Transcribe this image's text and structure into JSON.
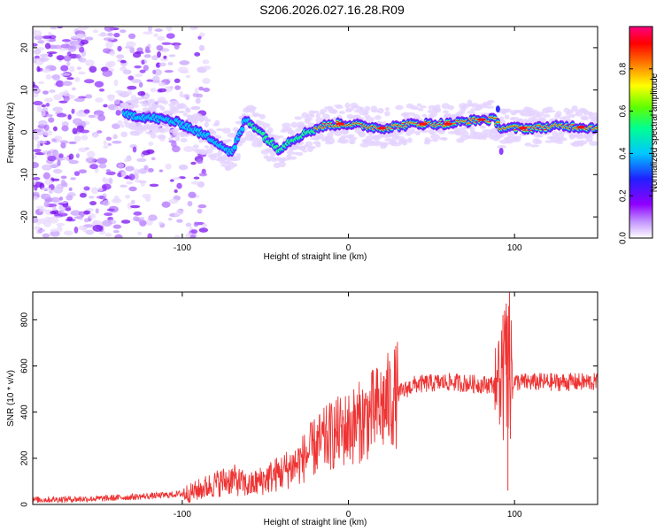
{
  "title": "S206.2026.027.16.28.R09",
  "chart_data": [
    {
      "type": "heatmap",
      "xlabel": "Height of straight line (km)",
      "ylabel": "Frequency (Hz)",
      "xlim": [
        -190,
        150
      ],
      "ylim": [
        -25,
        25
      ],
      "xticks": [
        -100,
        0,
        100
      ],
      "yticks": [
        -20,
        -10,
        0,
        10,
        20
      ],
      "colorbar": {
        "label": "Normalized spectral amplitude",
        "range": [
          0.0,
          1.0
        ],
        "ticks": [
          "0.0",
          "0.2",
          "0.4",
          "0.6",
          "0.8"
        ],
        "tick_values": [
          0.0,
          0.2,
          0.4,
          0.6,
          0.8
        ],
        "colors": [
          "#ffffff",
          "#a000ff",
          "#3030ff",
          "#00c8ff",
          "#00ff80",
          "#60ff00",
          "#ffff00",
          "#ff8000",
          "#ff0000",
          "#ff0080"
        ]
      },
      "ridge": {
        "x": [
          -130,
          -110,
          -100,
          -90,
          -80,
          -70,
          -62,
          -55,
          -48,
          -42,
          -35,
          -25,
          -15,
          -5,
          0,
          10,
          20,
          40,
          60,
          80,
          88,
          92,
          98,
          110,
          130,
          150
        ],
        "y": [
          4,
          3,
          2,
          0,
          -2,
          -5,
          3,
          1,
          -2,
          -4,
          -2,
          0,
          1.5,
          2,
          2,
          1.5,
          1,
          2,
          2,
          3,
          3,
          1,
          1,
          1,
          1.5,
          1
        ]
      },
      "noise_region_x": [
        -190,
        -100
      ]
    },
    {
      "type": "line",
      "xlabel": "Height of straight line (km)",
      "ylabel": "SNR (10 * v/v)",
      "xlim": [
        -190,
        150
      ],
      "ylim": [
        0,
        920
      ],
      "xticks": [
        -100,
        0,
        100
      ],
      "yticks": [
        0,
        200,
        400,
        600,
        800
      ],
      "series": [
        {
          "name": "SNR",
          "color": "#ee3333",
          "x": [
            -190,
            -150,
            -110,
            -95,
            -80,
            -70,
            -60,
            -50,
            -40,
            -30,
            -20,
            -10,
            0,
            10,
            20,
            30,
            40,
            60,
            80,
            88,
            92,
            95,
            97,
            100,
            110,
            130,
            150
          ],
          "y": [
            20,
            25,
            40,
            50,
            90,
            110,
            80,
            110,
            140,
            180,
            250,
            300,
            330,
            370,
            420,
            480,
            520,
            530,
            520,
            520,
            540,
            560,
            540,
            530,
            530,
            530,
            530
          ],
          "spikes": [
            {
              "x": 95,
              "y": 870
            },
            {
              "x": 96,
              "y": 60
            },
            {
              "x": 97,
              "y": 920
            },
            {
              "x": 93,
              "y": 820
            }
          ]
        }
      ]
    }
  ]
}
